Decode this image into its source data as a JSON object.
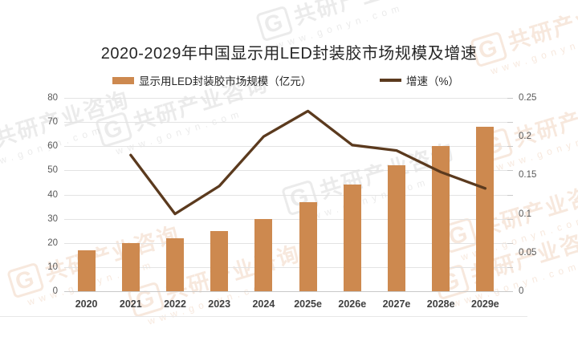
{
  "title": "2020-2029年中国显示用LED封装胶市场规模及增速",
  "legend": {
    "market_size_label": "显示用LED封装胶市场规模（亿元）",
    "growth_label": "增速（%）"
  },
  "chart_data": {
    "type": "bar+line",
    "title": "2020-2029年中国显示用LED封装胶市场规模及增速",
    "categories": [
      "2020",
      "2021",
      "2022",
      "2023",
      "2024",
      "2025e",
      "2026e",
      "2027e",
      "2028e",
      "2029e"
    ],
    "series": [
      {
        "name": "显示用LED封装胶市场规模（亿元）",
        "type": "bar",
        "axis": "left",
        "values": [
          17,
          20,
          22,
          25,
          30,
          37,
          44,
          52,
          60,
          68
        ]
      },
      {
        "name": "增速（%）",
        "type": "line",
        "axis": "right",
        "values": [
          null,
          0.176,
          0.1,
          0.136,
          0.2,
          0.233,
          0.189,
          0.182,
          0.154,
          0.133
        ]
      }
    ],
    "left_axis": {
      "min": 0,
      "max": 80,
      "step": 10,
      "tick_labels": [
        "0",
        "10",
        "20",
        "30",
        "40",
        "50",
        "60",
        "70",
        "80"
      ]
    },
    "right_axis": {
      "min": 0,
      "max": 0.25,
      "step": 0.05,
      "tick_labels": [
        "0",
        "0.05",
        "0.1",
        "0.15",
        "0.2",
        "0.25"
      ]
    },
    "grid": true,
    "legend_position": "top"
  },
  "watermark": {
    "logo": "G",
    "brand": "共研产业咨询",
    "site": "www.gonyn.com"
  },
  "colors": {
    "bar": "#CD894F",
    "line": "#5B3A1E",
    "grid": "#E3E3E3",
    "axis_line": "#C9C9C9",
    "axis_text": "#595959",
    "category_text": "#404040",
    "title_text": "#262626"
  }
}
